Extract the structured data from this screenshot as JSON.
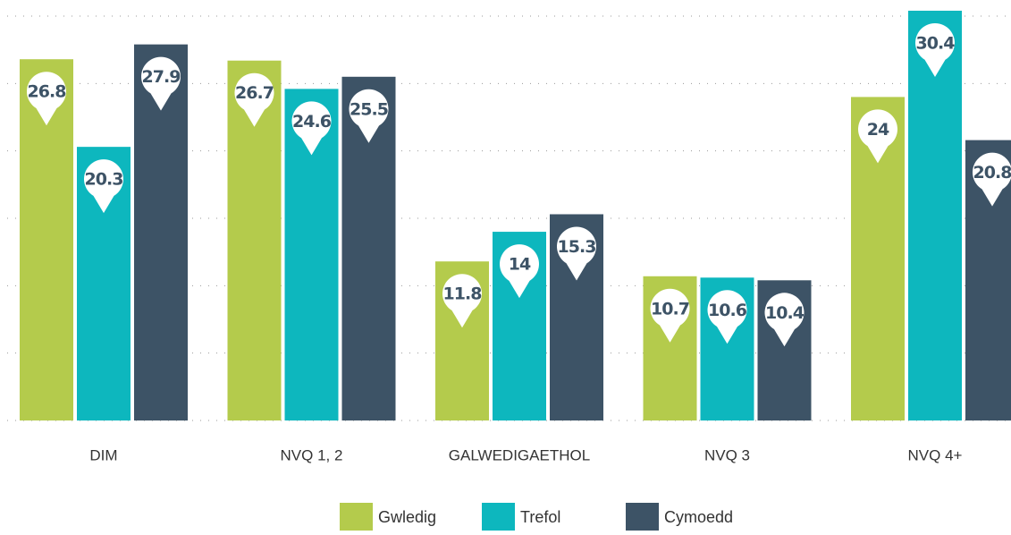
{
  "chart_data": {
    "type": "bar",
    "categories": [
      "DIM",
      "NVQ 1, 2",
      "GALWEDIGAETHOL",
      "NVQ 3",
      "NVQ 4+"
    ],
    "series": [
      {
        "name": "Gwledig",
        "color": "#b4cb4c",
        "values": [
          26.8,
          26.7,
          11.8,
          10.7,
          24
        ]
      },
      {
        "name": "Trefol",
        "color": "#0db7be",
        "values": [
          20.3,
          24.6,
          14,
          10.6,
          30.4
        ]
      },
      {
        "name": "Cymoedd",
        "color": "#3d5366",
        "values": [
          27.9,
          25.5,
          15.3,
          10.4,
          20.8
        ]
      }
    ],
    "ylim": [
      0,
      30
    ],
    "yticks": [
      0,
      5,
      10,
      15,
      20,
      25,
      30
    ],
    "grid": true,
    "legend": "bottom"
  }
}
